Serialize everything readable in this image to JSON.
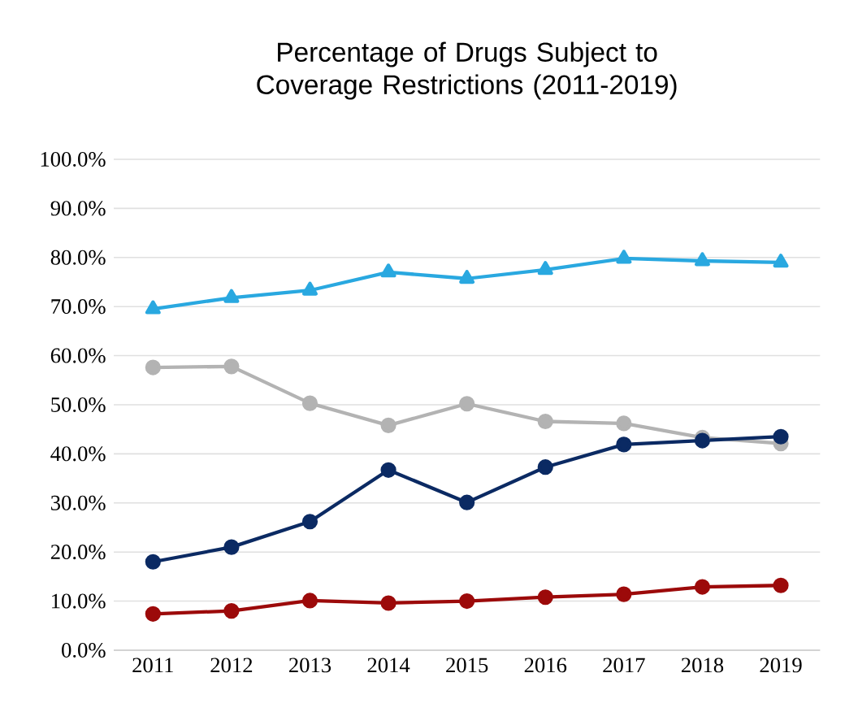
{
  "chart_data": {
    "type": "line",
    "title": "Percentage of Drugs Subject to Coverage Restrictions (2011-2019)",
    "categories": [
      "2011",
      "2012",
      "2013",
      "2014",
      "2015",
      "2016",
      "2017",
      "2018",
      "2019"
    ],
    "series": [
      {
        "color": "#29a8e0",
        "marker": "triangle",
        "values": [
          69.5,
          71.8,
          73.3,
          77.0,
          75.7,
          77.5,
          79.8,
          79.3,
          79.0
        ]
      },
      {
        "color": "#b3b3b3",
        "marker": "circle",
        "values": [
          57.6,
          57.8,
          50.3,
          45.8,
          50.2,
          46.6,
          46.2,
          43.3,
          42.1
        ]
      },
      {
        "color": "#0b2a63",
        "marker": "circle",
        "values": [
          18.0,
          21.0,
          26.2,
          36.7,
          30.1,
          37.3,
          41.9,
          42.7,
          43.5
        ]
      },
      {
        "color": "#9c0a0a",
        "marker": "circle",
        "values": [
          7.4,
          8.0,
          10.1,
          9.6,
          10.0,
          10.8,
          11.4,
          12.9,
          13.2
        ]
      }
    ],
    "ylim": [
      0,
      100
    ],
    "yticks": [
      {
        "value": 0,
        "label": "0.0%"
      },
      {
        "value": 10,
        "label": "10.0%"
      },
      {
        "value": 20,
        "label": "20.0%"
      },
      {
        "value": 30,
        "label": "30.0%"
      },
      {
        "value": 40,
        "label": "40.0%"
      },
      {
        "value": 50,
        "label": "50.0%"
      },
      {
        "value": 60,
        "label": "60.0%"
      },
      {
        "value": 70,
        "label": "70.0%"
      },
      {
        "value": 80,
        "label": "80.0%"
      },
      {
        "value": 90,
        "label": "90.0%"
      },
      {
        "value": 100,
        "label": "100.0%"
      }
    ],
    "grid": "y",
    "line_style": "solid"
  }
}
